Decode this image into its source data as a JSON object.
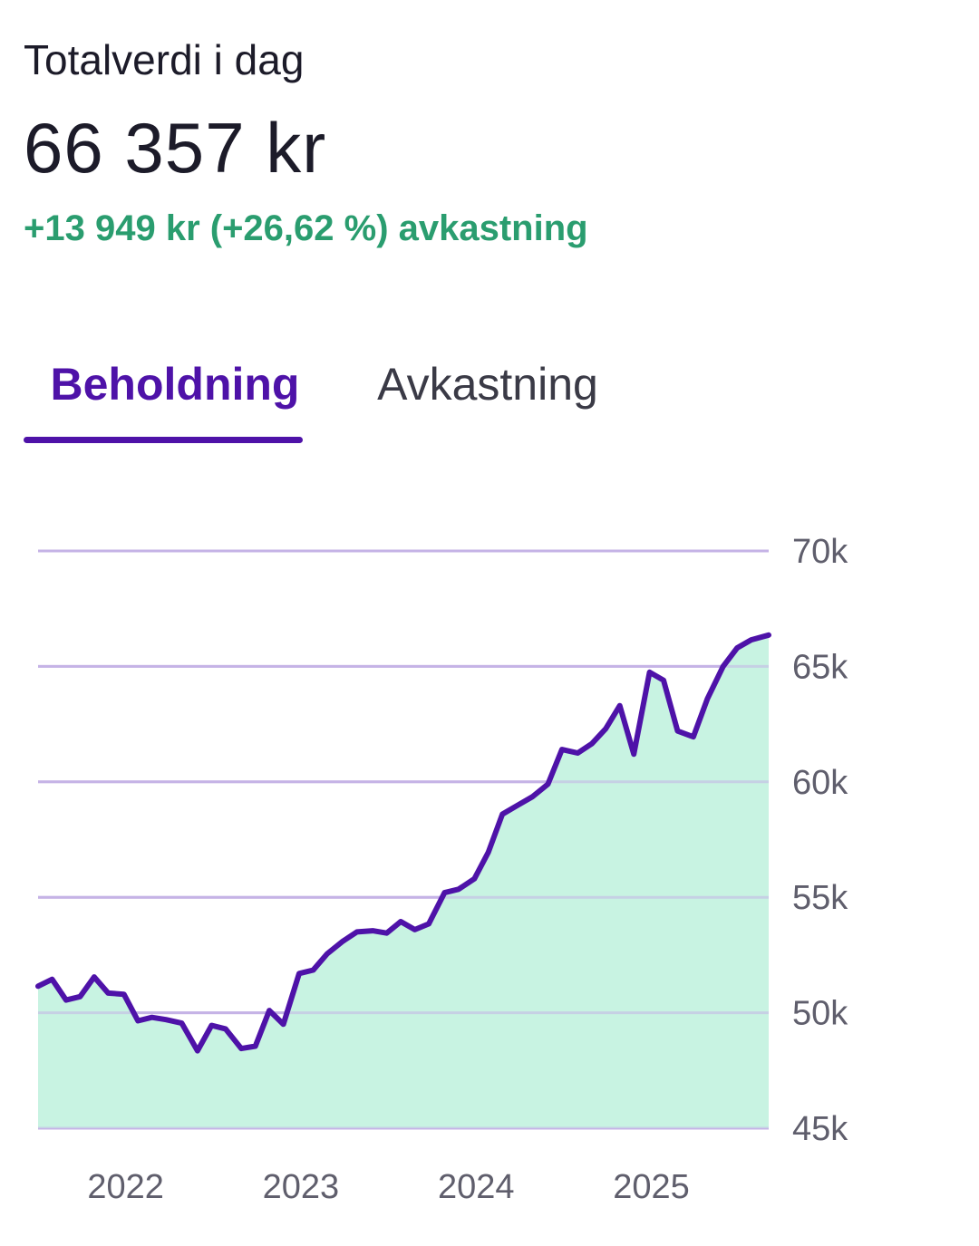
{
  "header": {
    "title": "Totalverdi i dag",
    "value": "66 357 kr",
    "delta": "+13 949 kr (+26,62 %) avkastning"
  },
  "tabs": [
    {
      "label": "Beholdning",
      "active": true
    },
    {
      "label": "Avkastning",
      "active": false
    }
  ],
  "colors": {
    "accent": "#4e12a8",
    "positive": "#2a9d6f",
    "fill": "#c8f3e2",
    "grid": "#c5b3e6",
    "tick": "#5f5e6c",
    "inactive_tab": "#3a3a46"
  },
  "chart_data": {
    "type": "area",
    "y_ticks": [
      "70k",
      "65k",
      "60k",
      "55k",
      "50k",
      "45k"
    ],
    "y_tick_values": [
      70000,
      65000,
      60000,
      55000,
      50000,
      45000
    ],
    "x_ticks": [
      "2022",
      "2023",
      "2024",
      "2025"
    ],
    "x_tick_values": [
      2022.0,
      2023.0,
      2024.0,
      2025.0
    ],
    "ylim": [
      45000,
      70000
    ],
    "xlim": [
      2021.5,
      2025.67
    ],
    "grid": true,
    "series": [
      {
        "x": [
          2021.5,
          2021.58,
          2021.66,
          2021.74,
          2021.82,
          2021.9,
          2021.99,
          2022.07,
          2022.15,
          2022.23,
          2022.32,
          2022.41,
          2022.49,
          2022.57,
          2022.66,
          2022.74,
          2022.82,
          2022.9,
          2022.99,
          2023.07,
          2023.15,
          2023.24,
          2023.32,
          2023.41,
          2023.49,
          2023.57,
          2023.65,
          2023.73,
          2023.82,
          2023.9,
          2023.99,
          2024.07,
          2024.15,
          2024.24,
          2024.32,
          2024.41,
          2024.49,
          2024.58,
          2024.66,
          2024.74,
          2024.82,
          2024.9,
          2024.99,
          2025.07,
          2025.15,
          2025.24,
          2025.32,
          2025.41,
          2025.49,
          2025.57,
          2025.67
        ],
        "values": [
          51150,
          51450,
          50550,
          50700,
          51550,
          50850,
          50800,
          49650,
          49800,
          49700,
          49550,
          48350,
          49450,
          49300,
          48450,
          48550,
          50100,
          49500,
          51700,
          51850,
          52550,
          53100,
          53500,
          53550,
          53450,
          53950,
          53600,
          53850,
          55200,
          55350,
          55800,
          56950,
          58600,
          59000,
          59350,
          59900,
          61400,
          61250,
          61650,
          62300,
          63300,
          61200,
          64750,
          64400,
          62200,
          61950,
          63600,
          65000,
          65800,
          66150,
          66357
        ]
      }
    ]
  }
}
